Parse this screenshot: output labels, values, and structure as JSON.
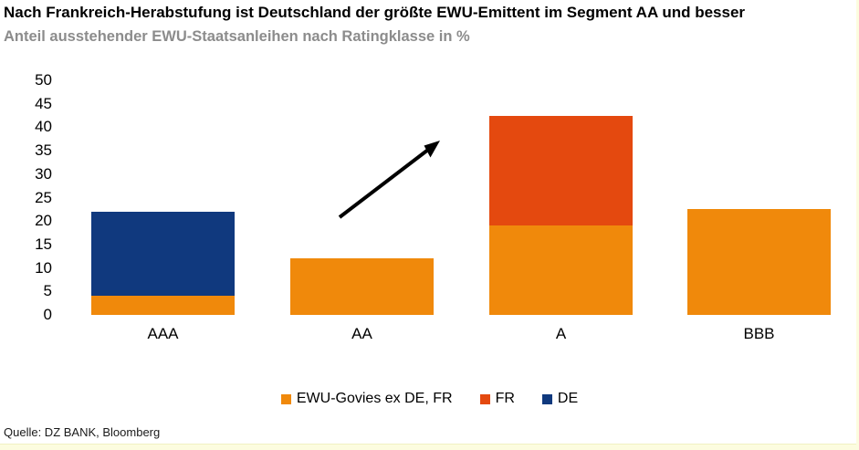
{
  "header": {
    "title": "Nach Frankreich-Herabstufung ist Deutschland der größte EWU-Emittent im Segment AA und besser",
    "subtitle": "Anteil ausstehender EWU-Staatsanleihen nach Ratingklasse in %"
  },
  "chart_data": {
    "type": "bar",
    "stacked": true,
    "title": "Nach Frankreich-Herabstufung ist Deutschland der größte EWU-Emittent im Segment AA und besser",
    "subtitle": "Anteil ausstehender EWU-Staatsanleihen nach Ratingklasse in %",
    "categories": [
      "AAA",
      "AA",
      "A",
      "BBB"
    ],
    "series": [
      {
        "name": "EWU-Govies ex DE, FR",
        "color": "#F0890B",
        "values": [
          4,
          12,
          19,
          22.5
        ]
      },
      {
        "name": "FR",
        "color": "#E4490F",
        "values": [
          0,
          0,
          23.5,
          0
        ]
      },
      {
        "name": "DE",
        "color": "#10397E",
        "values": [
          18,
          0,
          0,
          0
        ]
      }
    ],
    "xlabel": "",
    "ylabel": "",
    "ylim": [
      0,
      50
    ],
    "ytick_step": 5,
    "grid": false,
    "legend_position": "bottom",
    "annotations": [
      {
        "type": "arrow",
        "description": "black upward trend arrow between AA and A bars"
      }
    ]
  },
  "source": "Quelle: DZ BANK, Bloomberg",
  "colors": {
    "orange": "#F0890B",
    "red": "#E4490F",
    "blue": "#10397E",
    "subtitle_gray": "#8C8C8C",
    "border_band": "#FCFCDF",
    "arrow": "#000000"
  }
}
